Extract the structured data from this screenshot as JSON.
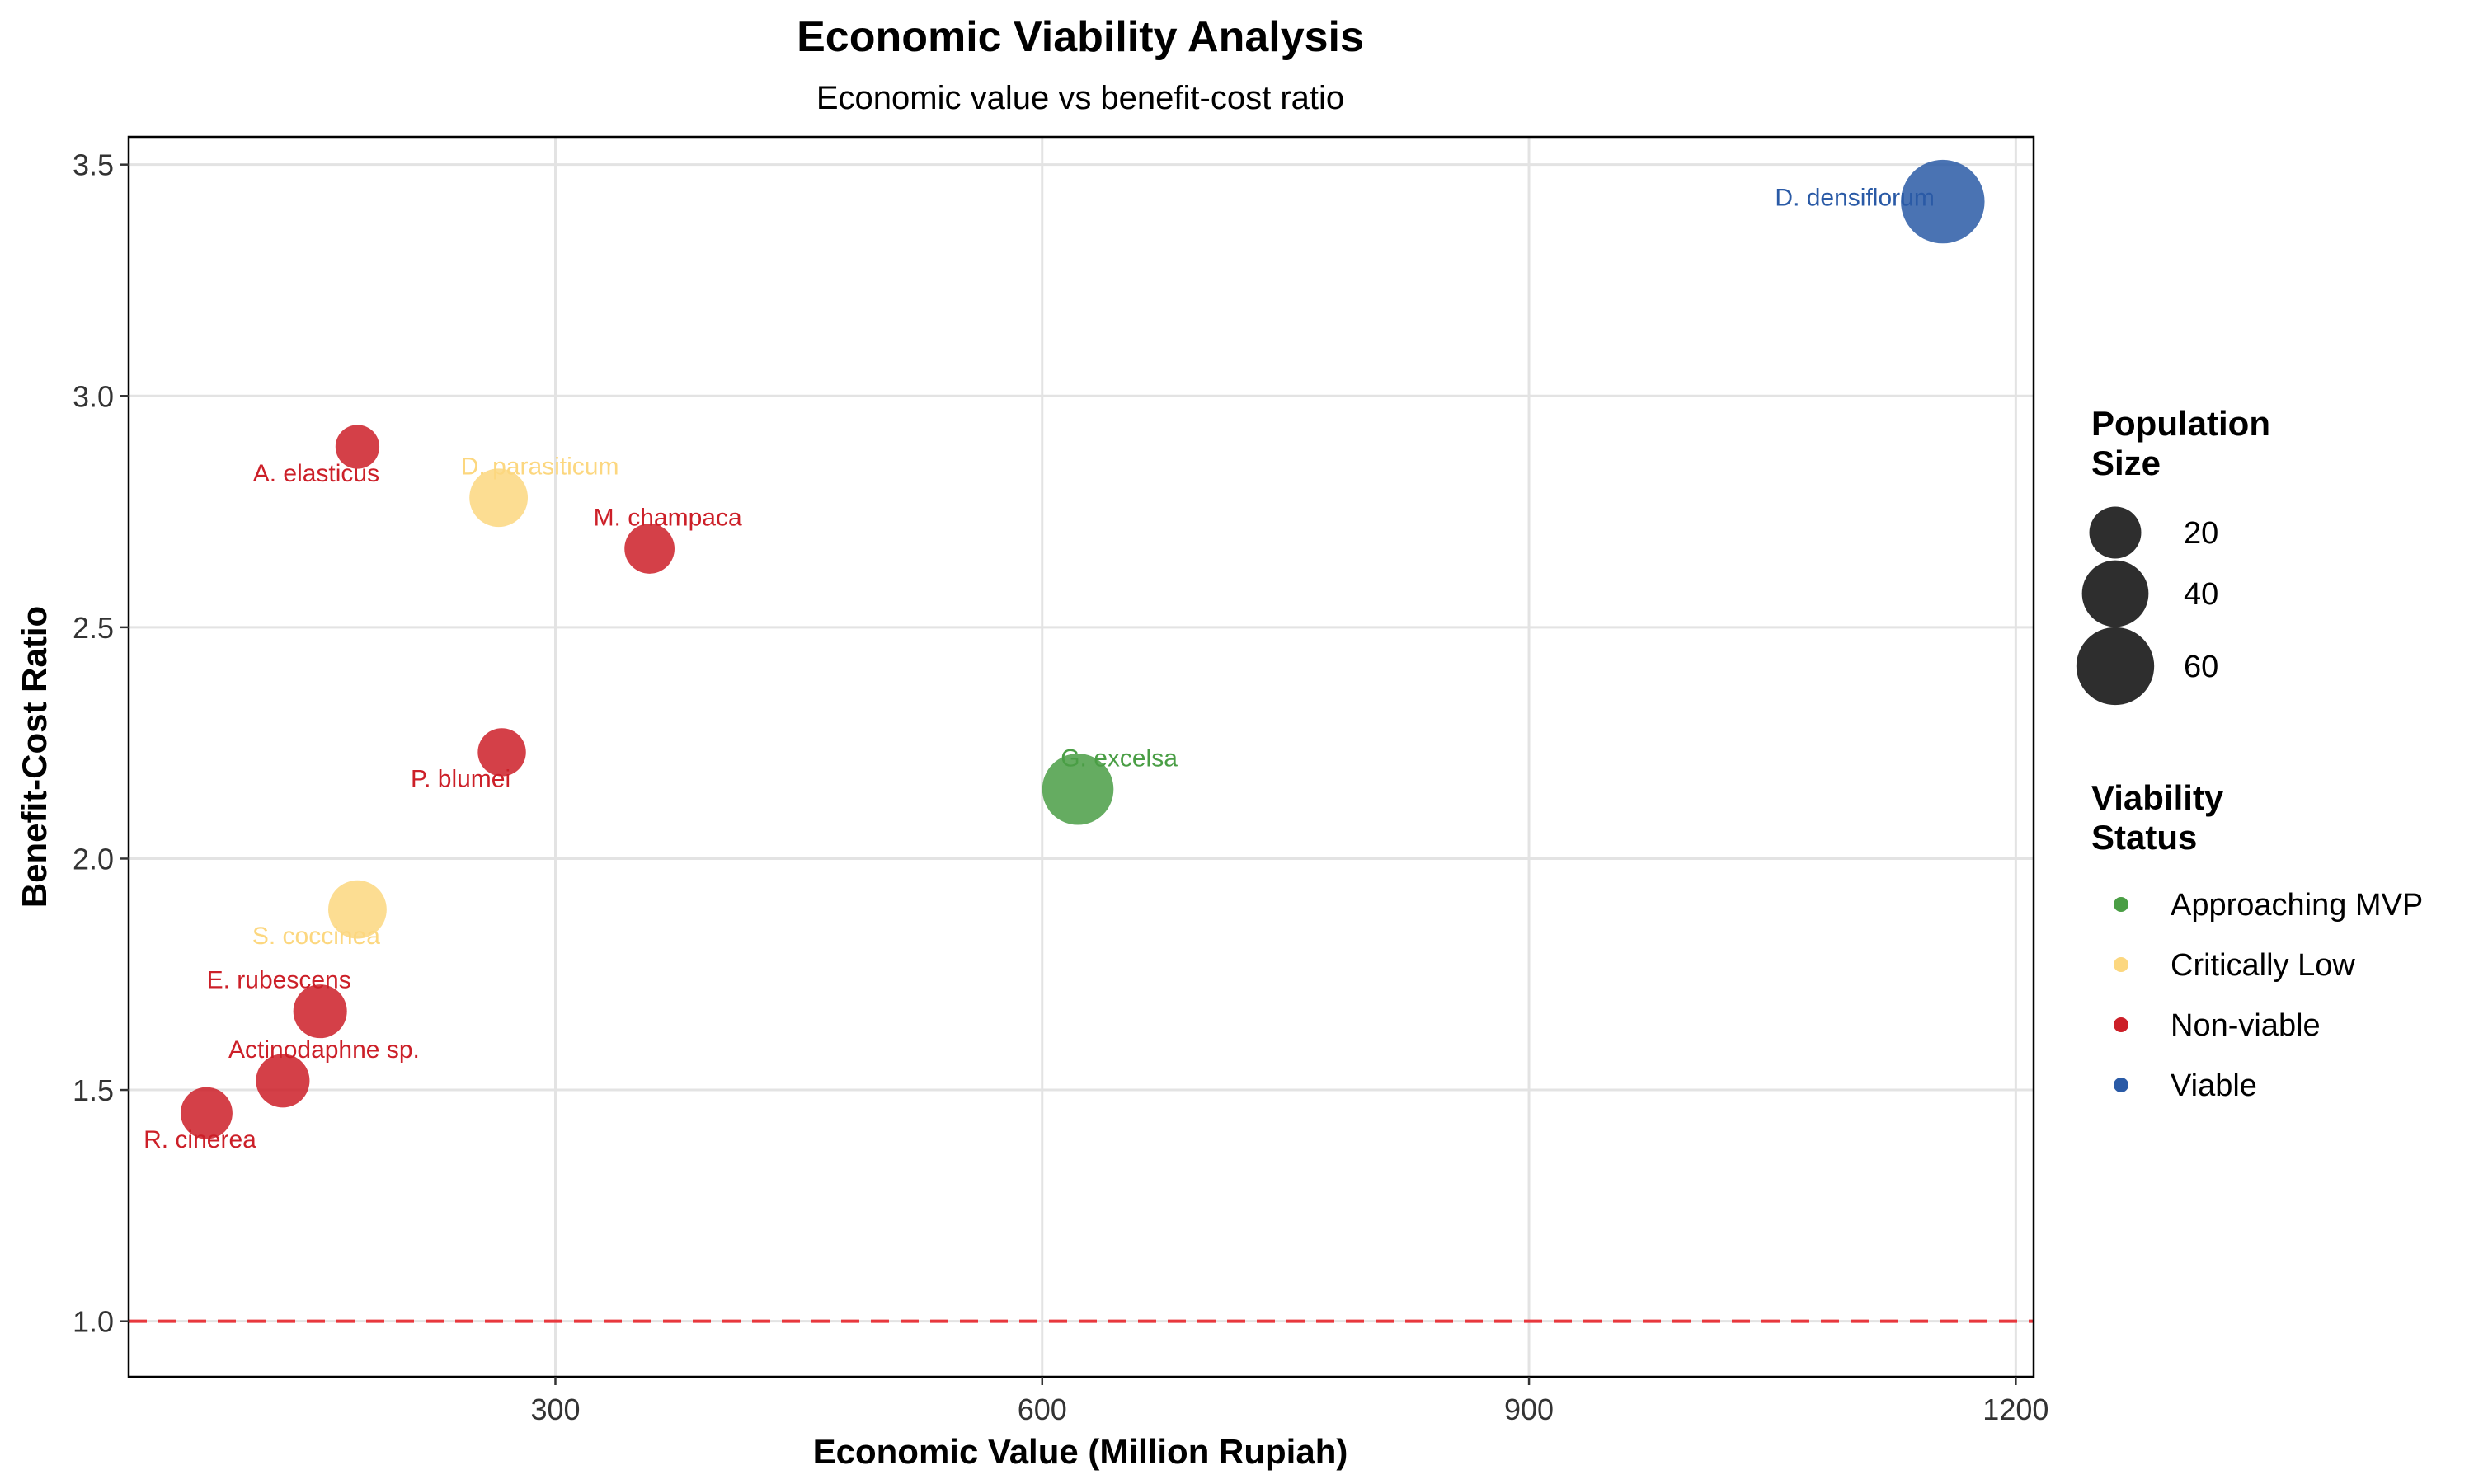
{
  "chart_data": {
    "type": "scatter",
    "title": "Economic Viability Analysis",
    "subtitle": "Economic value vs benefit-cost ratio",
    "xlabel": "Economic Value (Million Rupiah)",
    "ylabel": "Benefit-Cost Ratio",
    "xlim": [
      37,
      1211
    ],
    "ylim": [
      0.88,
      3.56
    ],
    "xticks": [
      300,
      600,
      900,
      1200
    ],
    "yticks": [
      1.0,
      1.5,
      2.0,
      2.5,
      3.0,
      3.5
    ],
    "ytick_labels": [
      "1.0",
      "1.5",
      "2.0",
      "2.5",
      "3.0",
      "3.5"
    ],
    "grid": true,
    "reference_line": {
      "y": 1.0,
      "style": "dashed",
      "color": "#e8383d"
    },
    "size_legend": {
      "title_lines": [
        "Population",
        "Size"
      ],
      "entries": [
        {
          "label": "20",
          "value": 20
        },
        {
          "label": "40",
          "value": 40
        },
        {
          "label": "60",
          "value": 60
        }
      ]
    },
    "color_legend": {
      "title_lines": [
        "Viability",
        "Status"
      ],
      "entries": [
        {
          "label": "Approaching MVP",
          "color": "#4a9e45"
        },
        {
          "label": "Critically Low",
          "color": "#fcd77f"
        },
        {
          "label": "Non-viable",
          "color": "#cc1f28"
        },
        {
          "label": "Viable",
          "color": "#2a5aa6"
        }
      ]
    },
    "series": [
      {
        "name": "Viable",
        "color": "#2a5aa6",
        "points": [
          {
            "label": "D. densiflorum",
            "x": 1155,
            "y": 3.42,
            "size": 72,
            "anchor": "end",
            "dx": -10,
            "dy": 5
          }
        ]
      },
      {
        "name": "Approaching MVP",
        "color": "#4a9e45",
        "points": [
          {
            "label": "G. excelsa",
            "x": 622,
            "y": 2.15,
            "size": 48,
            "anchor": "middle",
            "dx": 50,
            "dy": -28
          }
        ]
      },
      {
        "name": "Critically Low",
        "color": "#fcd77f",
        "points": [
          {
            "label": "D. parasiticum",
            "x": 265,
            "y": 2.78,
            "size": 28,
            "anchor": "middle",
            "dx": 50,
            "dy": -28
          },
          {
            "label": "S. coccinea",
            "x": 178,
            "y": 1.89,
            "size": 28,
            "anchor": "middle",
            "dx": -50,
            "dy": 42
          }
        ]
      },
      {
        "name": "Non-viable",
        "color": "#cc1f28",
        "points": [
          {
            "label": "A. elasticus",
            "x": 178,
            "y": 2.89,
            "size": 12,
            "anchor": "middle",
            "dx": -50,
            "dy": 42
          },
          {
            "label": "M. champaca",
            "x": 358,
            "y": 2.67,
            "size": 18,
            "anchor": "middle",
            "dx": 22,
            "dy": -28
          },
          {
            "label": "P. blumei",
            "x": 267,
            "y": 2.23,
            "size": 16,
            "anchor": "middle",
            "dx": -50,
            "dy": 42
          },
          {
            "label": "E. rubescens",
            "x": 155,
            "y": 1.67,
            "size": 22,
            "anchor": "middle",
            "dx": -50,
            "dy": -28
          },
          {
            "label": "Actinodaphne sp.",
            "x": 132,
            "y": 1.52,
            "size": 22,
            "anchor": "middle",
            "dx": 50,
            "dy": -28
          },
          {
            "label": "R. cinerea",
            "x": 85,
            "y": 1.45,
            "size": 20,
            "anchor": "middle",
            "dx": -8,
            "dy": 42
          }
        ]
      }
    ]
  }
}
